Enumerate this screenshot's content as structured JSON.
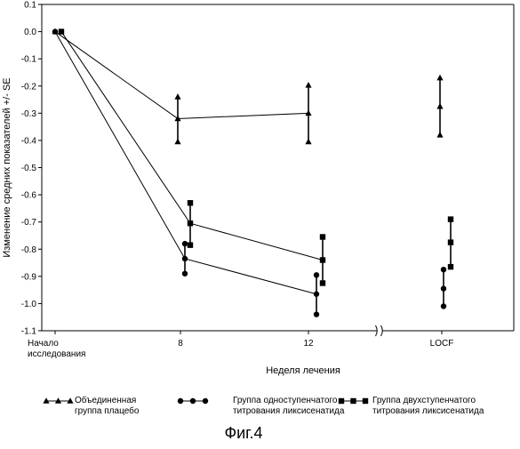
{
  "figure_label": "Фиг.4",
  "chart_data": {
    "type": "line",
    "ylabel": "Изменение средних показателей +/- SE",
    "xlabel": "Неделя лечения",
    "ylim": [
      -1.1,
      0.1
    ],
    "yticks": [
      0.1,
      0.0,
      -0.1,
      -0.2,
      -0.3,
      -0.4,
      -0.5,
      -0.6,
      -0.7,
      -0.8,
      -0.9,
      -1.0,
      -1.1
    ],
    "ytick_labels": [
      "0.1",
      "0.0",
      "-0.1",
      "-0.2",
      "-0.3",
      "-0.4",
      "-0.5",
      "-0.6",
      "-0.7",
      "-0.8",
      "-0.9",
      "-1.0",
      "-1.1"
    ],
    "x_categories": [
      "Начало исследования",
      "8",
      "12",
      "LOCF"
    ],
    "x_category_lines": [
      [
        "Начало",
        "исследования"
      ],
      [
        "8"
      ],
      [
        "12"
      ],
      [
        "LOCF"
      ]
    ],
    "axis_break_between": [
      "12",
      "LOCF"
    ],
    "grid": false,
    "legend_position": "bottom",
    "series": [
      {
        "name": "Объединенная группа плацебо",
        "name_lines": [
          "Объединенная",
          "группа плацебо"
        ],
        "marker": "triangle",
        "values": [
          0.0,
          -0.32,
          -0.3,
          -0.275
        ],
        "lower": [
          null,
          -0.405,
          -0.405,
          -0.38
        ],
        "upper": [
          null,
          -0.24,
          -0.197,
          -0.17
        ]
      },
      {
        "name": "Группа одноступенчатого титрования ликсисенатида",
        "name_lines": [
          "Группа одноступенчатого",
          "титрования ликсисенатида"
        ],
        "marker": "circle",
        "values": [
          0.0,
          -0.835,
          -0.965,
          -0.945
        ],
        "lower": [
          null,
          -0.89,
          -1.04,
          -1.01
        ],
        "upper": [
          null,
          -0.78,
          -0.895,
          -0.875
        ]
      },
      {
        "name": "Группа двухступенчатого титрования ликсисенатида",
        "name_lines": [
          "Группа двухступенчатого",
          "титрования ликсисенатида"
        ],
        "marker": "square",
        "values": [
          0.0,
          -0.705,
          -0.84,
          -0.775
        ],
        "lower": [
          null,
          -0.785,
          -0.925,
          -0.865
        ],
        "upper": [
          null,
          -0.63,
          -0.755,
          -0.69
        ]
      }
    ]
  }
}
